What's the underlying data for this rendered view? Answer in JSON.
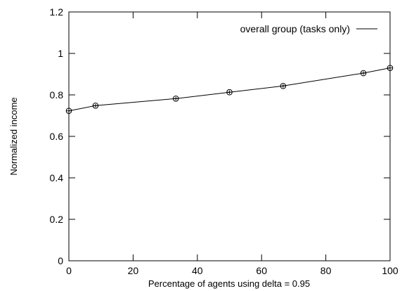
{
  "chart_data": {
    "type": "line",
    "xlabel": "Percentage of agents using delta = 0.95",
    "ylabel": "Normalized income",
    "xlim": [
      0,
      100
    ],
    "ylim": [
      0,
      1.2
    ],
    "x_ticks": [
      "0",
      "20",
      "40",
      "60",
      "80",
      "100"
    ],
    "y_ticks": [
      "0",
      "0.2",
      "0.4",
      "0.6",
      "0.8",
      "1",
      "1.2"
    ],
    "grid": false,
    "legend_position": "top-right",
    "series": [
      {
        "name": "overall group (tasks only)",
        "color": "#000000",
        "marker": "circle-plus",
        "x": [
          0,
          8.3,
          33.3,
          50,
          66.7,
          91.7,
          100
        ],
        "y": [
          0.723,
          0.748,
          0.782,
          0.813,
          0.843,
          0.905,
          0.93
        ],
        "error": [
          0.005,
          0.005,
          0.005,
          0.005,
          0.005,
          0.005,
          0.005
        ]
      }
    ]
  }
}
